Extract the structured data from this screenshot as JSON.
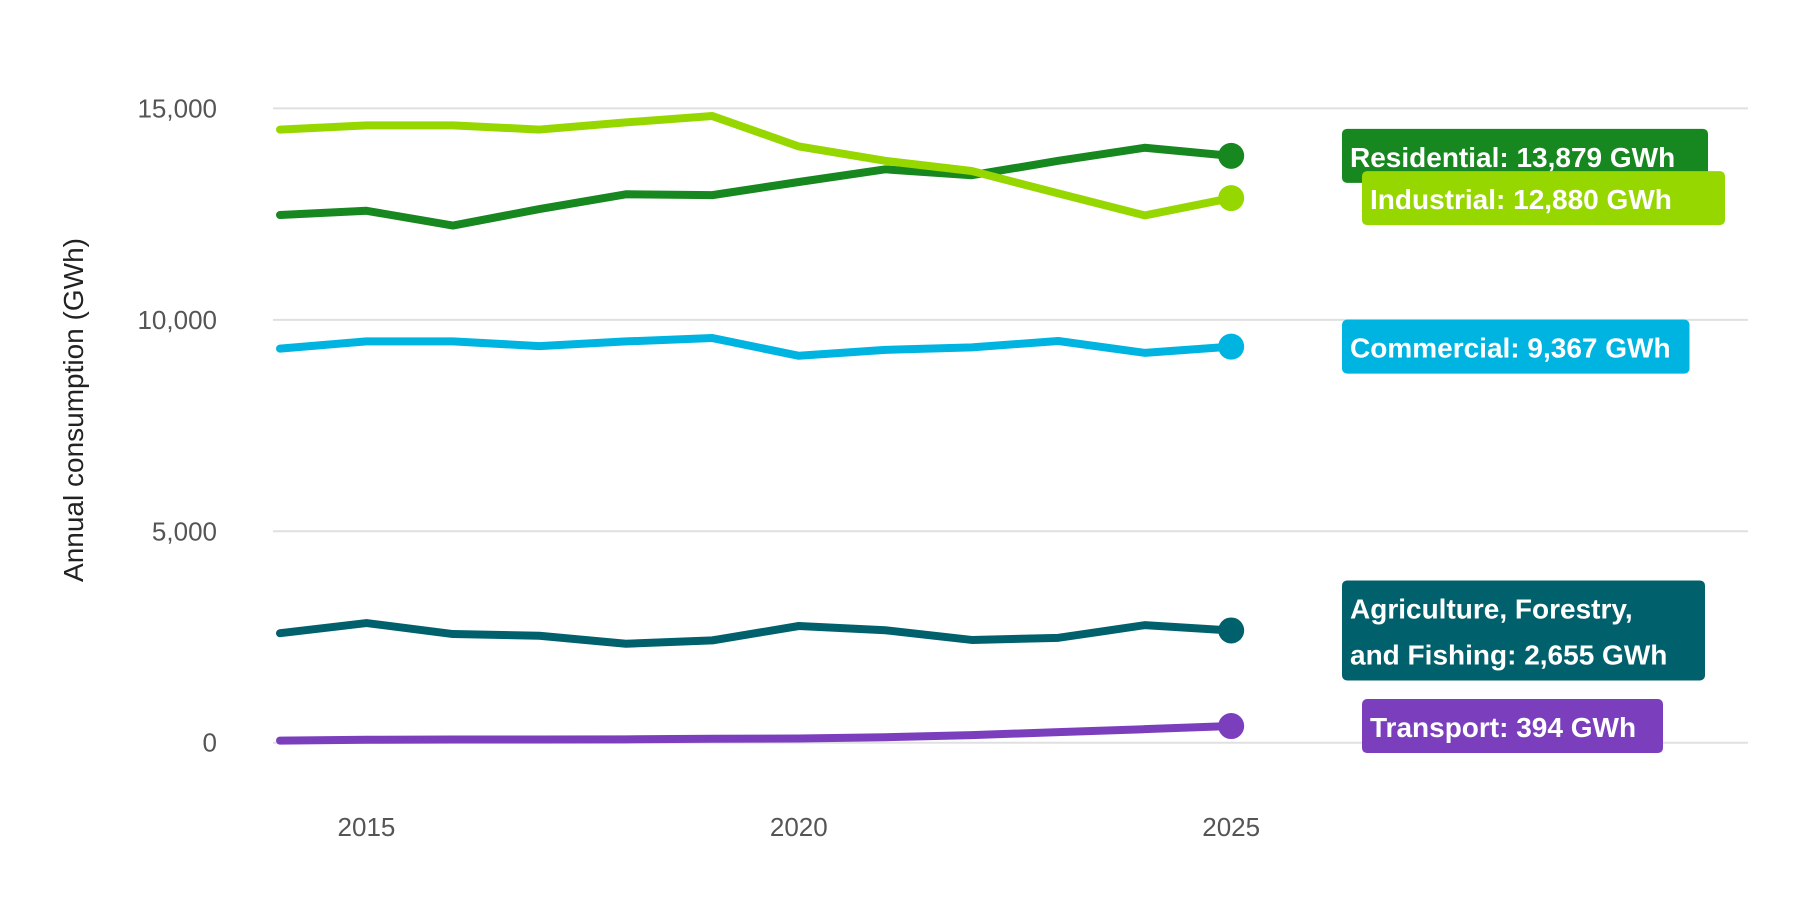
{
  "chart_data": {
    "type": "line",
    "title": "",
    "xlabel": "",
    "ylabel": "Annual consumption (GWh)",
    "x": [
      2014,
      2015,
      2016,
      2017,
      2018,
      2019,
      2020,
      2021,
      2022,
      2023,
      2024,
      2025
    ],
    "xlim": [
      2014,
      2031
    ],
    "ylim": [
      -1000,
      16500
    ],
    "x_ticks": [
      "2015",
      "2020",
      "2025"
    ],
    "y_ticks": [
      "0",
      "5,000",
      "10,000",
      "15,000"
    ],
    "grid": "horizontal",
    "legend": "direct labels right",
    "series": [
      {
        "name": "Residential",
        "label": "Residential: 13,879 GWh",
        "color": "#17871f",
        "values": [
          12480,
          12580,
          12230,
          12620,
          12970,
          12950,
          13260,
          13560,
          13420,
          13760,
          14070,
          13879
        ]
      },
      {
        "name": "Industrial",
        "label": "Industrial: 12,880 GWh",
        "color": "#97d700",
        "values": [
          14500,
          14600,
          14600,
          14500,
          14670,
          14820,
          14100,
          13760,
          13520,
          12990,
          12470,
          12880
        ]
      },
      {
        "name": "Commercial",
        "label": "Commercial: 9,367 GWh",
        "color": "#00b4e1",
        "values": [
          9320,
          9490,
          9490,
          9380,
          9490,
          9570,
          9150,
          9290,
          9350,
          9500,
          9220,
          9367
        ]
      },
      {
        "name": "Agriculture, Forestry, and Fishing",
        "label": [
          "Agriculture, Forestry,",
          "and Fishing: 2,655 GWh"
        ],
        "color": "#00616d",
        "values": [
          2590,
          2830,
          2570,
          2530,
          2340,
          2420,
          2760,
          2660,
          2430,
          2480,
          2780,
          2655
        ]
      },
      {
        "name": "Transport",
        "label": "Transport: 394 GWh",
        "color": "#7b3fbe",
        "values": [
          50,
          70,
          75,
          75,
          80,
          95,
          100,
          130,
          180,
          250,
          320,
          394
        ]
      }
    ]
  }
}
